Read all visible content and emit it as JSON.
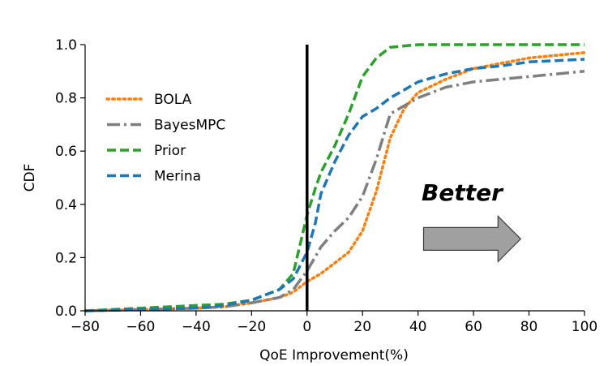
{
  "chart_data": {
    "type": "line",
    "title": "",
    "xlabel": "QoE Improvement(%)",
    "ylabel": "CDF",
    "xlim": [
      -80,
      100
    ],
    "ylim": [
      0.0,
      1.0
    ],
    "xticks": [
      -80,
      -60,
      -40,
      -20,
      0,
      20,
      40,
      60,
      80,
      100
    ],
    "xtick_labels": [
      "−80",
      "−60",
      "−40",
      "−20",
      "0",
      "20",
      "40",
      "60",
      "80",
      "100"
    ],
    "yticks": [
      0.0,
      0.2,
      0.4,
      0.6,
      0.8,
      1.0
    ],
    "ytick_labels": [
      "0.0",
      "0.2",
      "0.4",
      "0.6",
      "0.8",
      "1.0"
    ],
    "grid": false,
    "legend_position": "upper-left",
    "vertical_line_x": 0,
    "annotation": {
      "text": "Better",
      "arrow_direction": "right",
      "arrow_from_x": 42,
      "arrow_to_x": 77,
      "arrow_y": 0.27
    },
    "series": [
      {
        "name": "BOLA",
        "color": "#ff7f0e",
        "style": "dotted",
        "x": [
          -80,
          -60,
          -40,
          -30,
          -20,
          -10,
          -5,
          0,
          5,
          10,
          15,
          20,
          25,
          30,
          35,
          40,
          50,
          60,
          70,
          80,
          90,
          100
        ],
        "y": [
          0.0,
          0.005,
          0.01,
          0.015,
          0.03,
          0.05,
          0.07,
          0.11,
          0.14,
          0.18,
          0.22,
          0.3,
          0.45,
          0.65,
          0.76,
          0.82,
          0.87,
          0.91,
          0.93,
          0.95,
          0.96,
          0.97
        ]
      },
      {
        "name": "BayesMPC",
        "color": "#7f7f7f",
        "style": "dashdot",
        "x": [
          -80,
          -60,
          -40,
          -30,
          -20,
          -10,
          -5,
          0,
          5,
          10,
          15,
          20,
          25,
          30,
          35,
          40,
          50,
          60,
          70,
          80,
          90,
          100
        ],
        "y": [
          0.0,
          0.005,
          0.01,
          0.015,
          0.03,
          0.05,
          0.08,
          0.15,
          0.24,
          0.3,
          0.35,
          0.43,
          0.57,
          0.74,
          0.77,
          0.8,
          0.84,
          0.86,
          0.87,
          0.88,
          0.89,
          0.9
        ]
      },
      {
        "name": "Prior",
        "color": "#2ca02c",
        "style": "dashed",
        "x": [
          -80,
          -60,
          -40,
          -30,
          -20,
          -10,
          -5,
          0,
          3,
          5,
          10,
          15,
          20,
          25,
          30,
          35,
          40,
          60,
          80,
          100
        ],
        "y": [
          0.0,
          0.01,
          0.02,
          0.025,
          0.04,
          0.08,
          0.14,
          0.36,
          0.46,
          0.52,
          0.62,
          0.74,
          0.88,
          0.95,
          0.99,
          0.995,
          1.0,
          1.0,
          1.0,
          1.0
        ]
      },
      {
        "name": "Merina",
        "color": "#1f77b4",
        "style": "dashed",
        "x": [
          -80,
          -60,
          -40,
          -30,
          -20,
          -10,
          -5,
          0,
          3,
          5,
          10,
          15,
          20,
          25,
          30,
          35,
          40,
          50,
          60,
          70,
          80,
          90,
          100
        ],
        "y": [
          0.0,
          0.005,
          0.01,
          0.02,
          0.04,
          0.08,
          0.12,
          0.22,
          0.33,
          0.44,
          0.56,
          0.66,
          0.73,
          0.76,
          0.8,
          0.83,
          0.86,
          0.89,
          0.91,
          0.92,
          0.935,
          0.94,
          0.945
        ]
      }
    ]
  }
}
